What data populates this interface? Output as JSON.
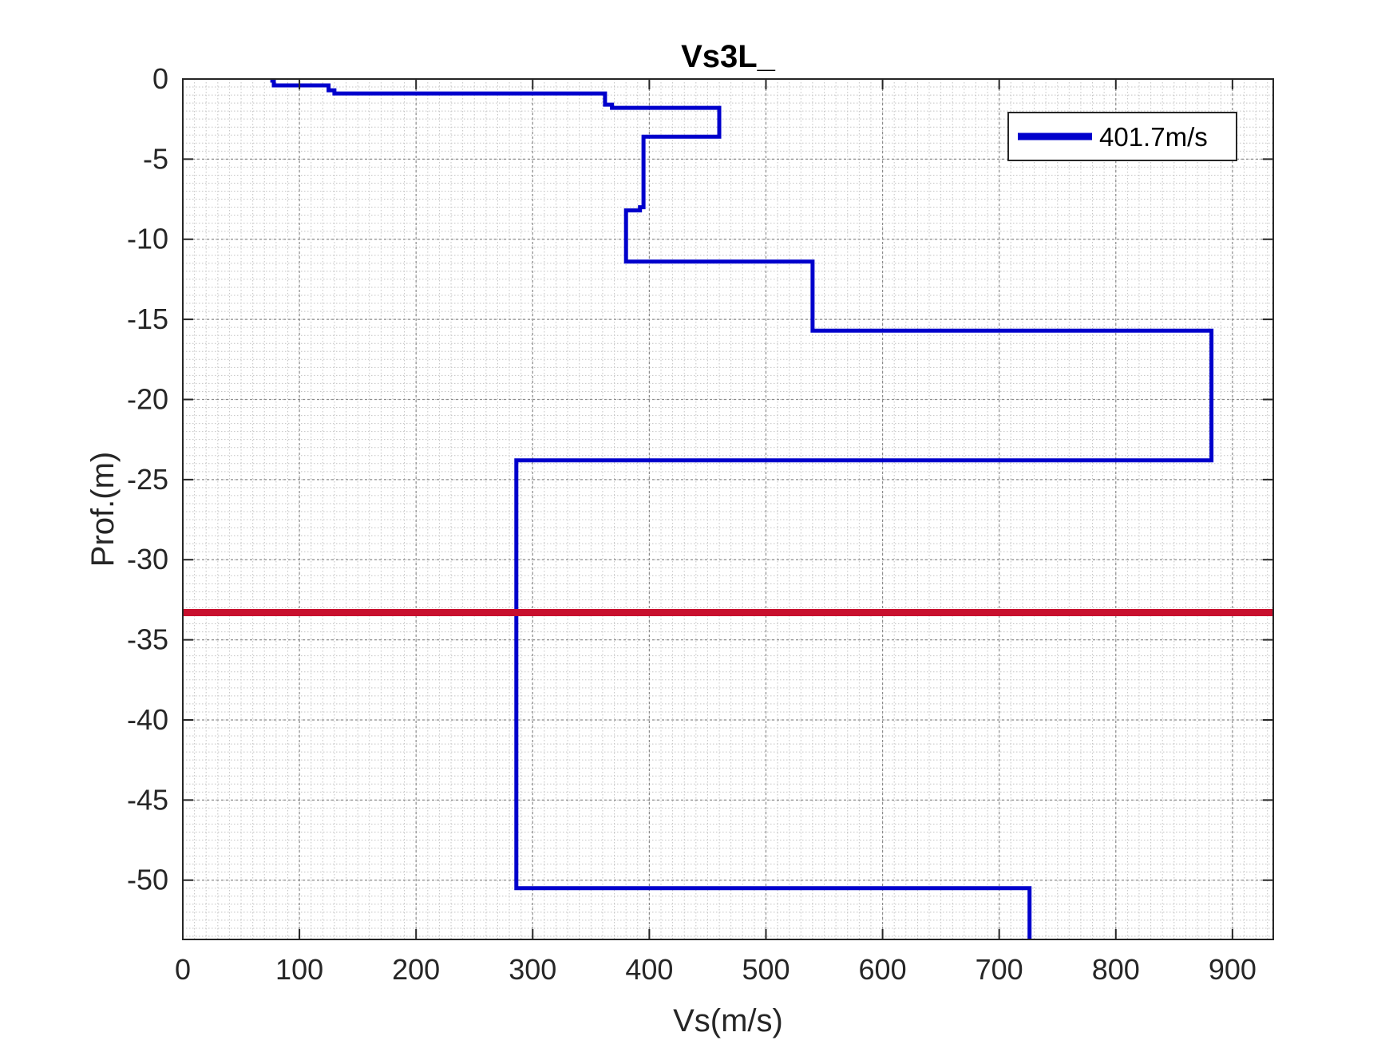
{
  "chart_data": {
    "type": "line",
    "title": "Vs3L_",
    "xlabel": "Vs(m/s)",
    "ylabel": "Prof.(m)",
    "xlim": [
      0,
      935
    ],
    "ylim": [
      -53.7,
      0
    ],
    "xticks": [
      0,
      100,
      200,
      300,
      400,
      500,
      600,
      700,
      800,
      900
    ],
    "yticks": [
      0,
      -5,
      -10,
      -15,
      -20,
      -25,
      -30,
      -35,
      -40,
      -45,
      -50
    ],
    "grid": true,
    "minor_grid": true,
    "legend_position": "top-right",
    "series": [
      {
        "name": "401.7m/s",
        "color": "#0000cc",
        "x": [
          75,
          78,
          78,
          125,
          125,
          130,
          130,
          362,
          362,
          368,
          368,
          460,
          460,
          395,
          395,
          392,
          392,
          380,
          380,
          540,
          540,
          882,
          882,
          286,
          286,
          726,
          726
        ],
        "y": [
          -0.1,
          -0.1,
          -0.4,
          -0.4,
          -0.7,
          -0.7,
          -0.9,
          -0.9,
          -1.6,
          -1.6,
          -1.8,
          -1.8,
          -3.6,
          -3.6,
          -8.0,
          -8.0,
          -8.2,
          -8.2,
          -11.4,
          -11.4,
          -15.7,
          -15.7,
          -23.8,
          -23.8,
          -50.5,
          -50.5,
          -53.7
        ]
      }
    ],
    "reference_line": {
      "type": "horizontal",
      "y": -33.3,
      "color": "#c8102e"
    }
  }
}
